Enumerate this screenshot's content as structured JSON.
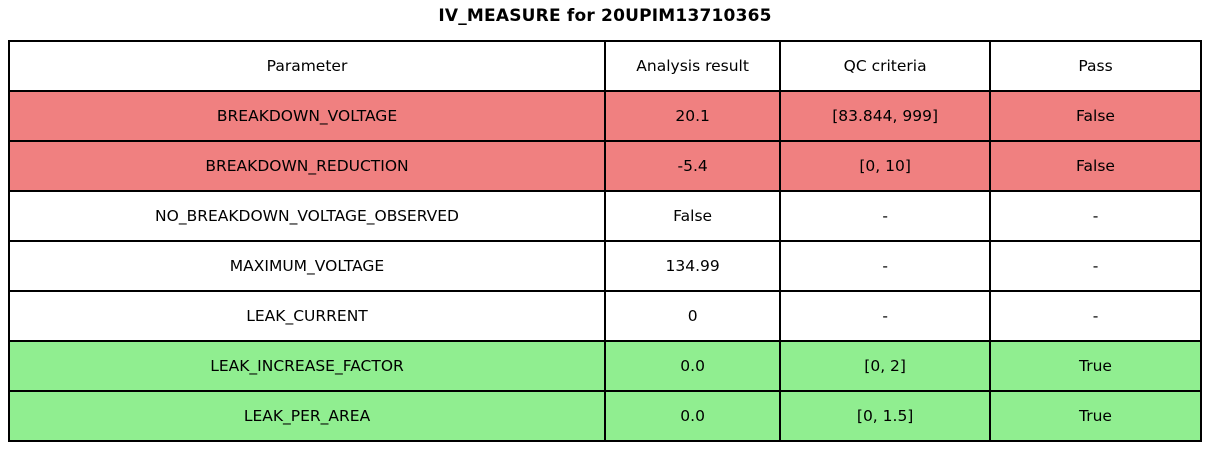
{
  "title": "IV_MEASURE for 20UPIM13710365",
  "table": {
    "headers": [
      "Parameter",
      "Analysis result",
      "QC criteria",
      "Pass"
    ],
    "rows": [
      {
        "parameter": "BREAKDOWN_VOLTAGE",
        "analysis_result": "20.1",
        "qc_criteria": "[83.844, 999]",
        "pass": "False",
        "status": "fail"
      },
      {
        "parameter": "BREAKDOWN_REDUCTION",
        "analysis_result": "-5.4",
        "qc_criteria": "[0, 10]",
        "pass": "False",
        "status": "fail"
      },
      {
        "parameter": "NO_BREAKDOWN_VOLTAGE_OBSERVED",
        "analysis_result": "False",
        "qc_criteria": "-",
        "pass": "-",
        "status": "neutral"
      },
      {
        "parameter": "MAXIMUM_VOLTAGE",
        "analysis_result": "134.99",
        "qc_criteria": "-",
        "pass": "-",
        "status": "neutral"
      },
      {
        "parameter": "LEAK_CURRENT",
        "analysis_result": "0",
        "qc_criteria": "-",
        "pass": "-",
        "status": "neutral"
      },
      {
        "parameter": "LEAK_INCREASE_FACTOR",
        "analysis_result": "0.0",
        "qc_criteria": "[0, 2]",
        "pass": "True",
        "status": "pass"
      },
      {
        "parameter": "LEAK_PER_AREA",
        "analysis_result": "0.0",
        "qc_criteria": "[0, 1.5]",
        "pass": "True",
        "status": "pass"
      }
    ],
    "status_colors": {
      "fail": "#f08080",
      "pass": "#90ee90",
      "neutral": "#ffffff"
    },
    "border_color": "#000000"
  },
  "chart_data": {
    "type": "table",
    "title": "IV_MEASURE for 20UPIM13710365",
    "columns": [
      "Parameter",
      "Analysis result",
      "QC criteria",
      "Pass"
    ],
    "rows": [
      [
        "BREAKDOWN_VOLTAGE",
        "20.1",
        "[83.844, 999]",
        "False"
      ],
      [
        "BREAKDOWN_REDUCTION",
        "-5.4",
        "[0, 10]",
        "False"
      ],
      [
        "NO_BREAKDOWN_VOLTAGE_OBSERVED",
        "False",
        "-",
        "-"
      ],
      [
        "MAXIMUM_VOLTAGE",
        "134.99",
        "-",
        "-"
      ],
      [
        "LEAK_CURRENT",
        "0",
        "-",
        "-"
      ],
      [
        "LEAK_INCREASE_FACTOR",
        "0.0",
        "[0, 2]",
        "True"
      ],
      [
        "LEAK_PER_AREA",
        "0.0",
        "[0, 1.5]",
        "True"
      ]
    ],
    "row_colors": [
      "#f08080",
      "#f08080",
      "#ffffff",
      "#ffffff",
      "#ffffff",
      "#90ee90",
      "#90ee90"
    ],
    "layout": {
      "header_background": "#ffffff",
      "grid": true,
      "text_align": "center"
    }
  }
}
